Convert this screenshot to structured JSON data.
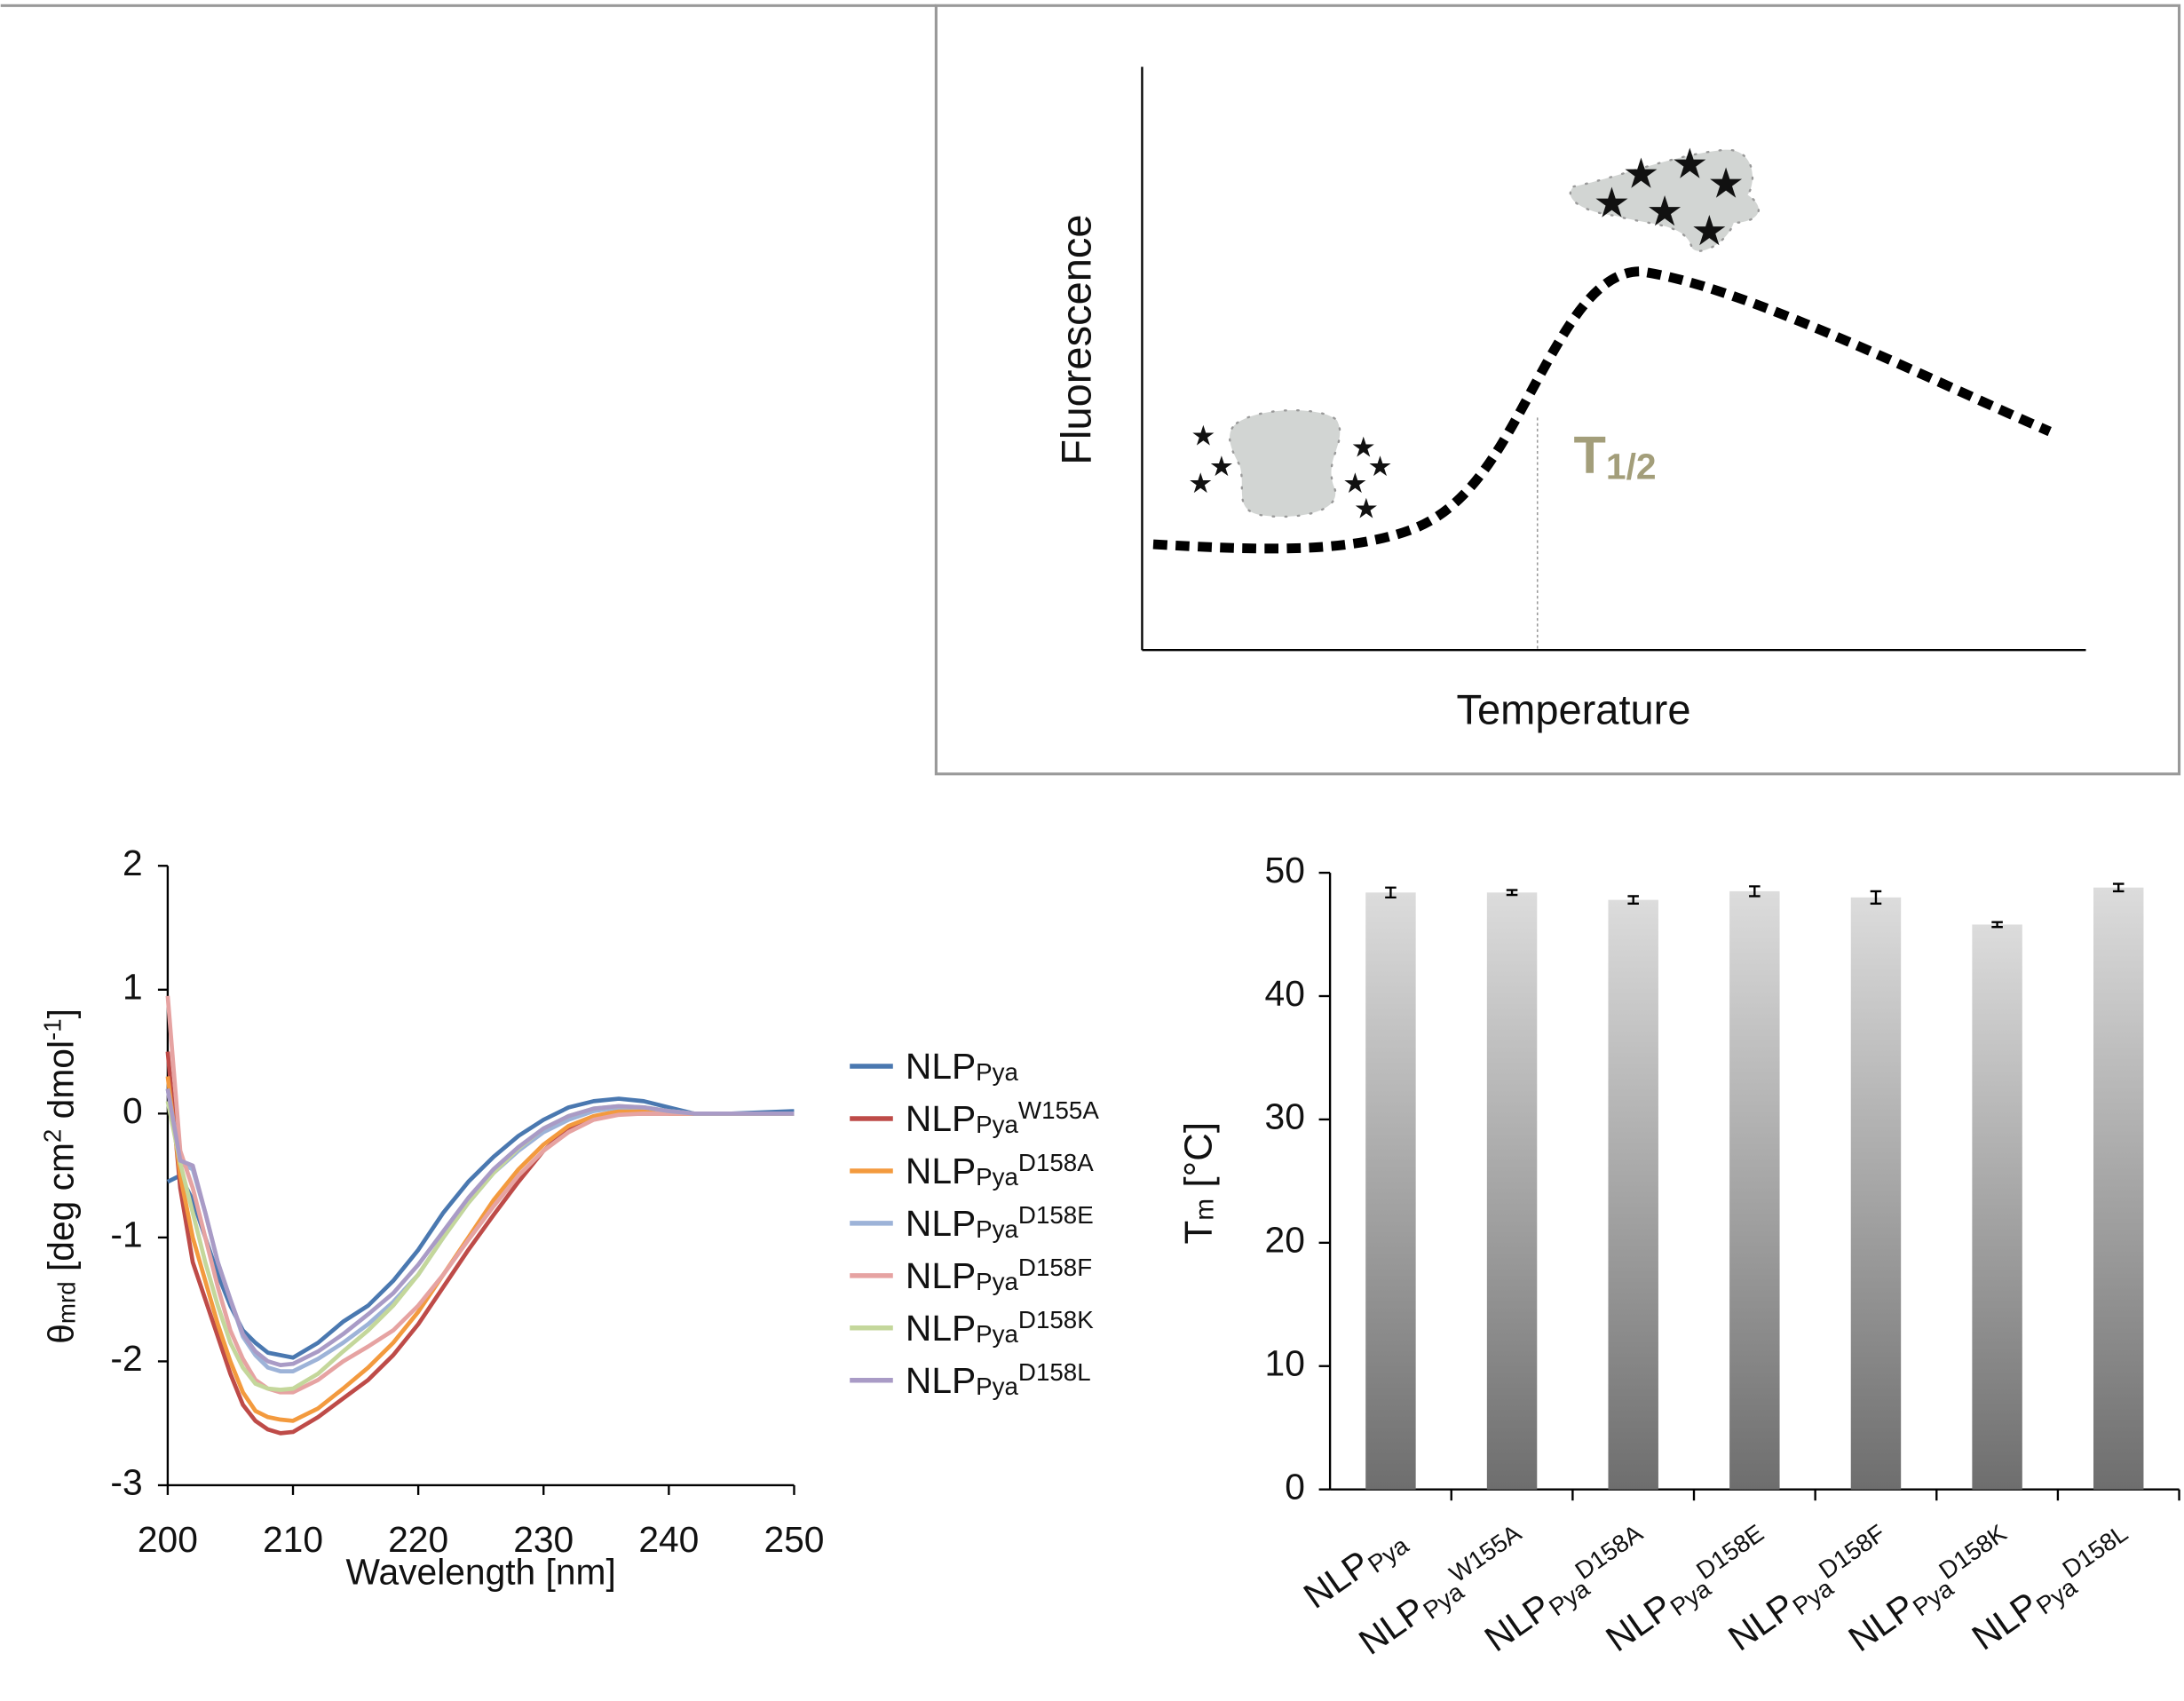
{
  "schematic": {
    "y_label": "Fluorescence",
    "x_label": "Temperature",
    "marker": {
      "main": "T",
      "subscript": "1/2"
    }
  },
  "chart_data": [
    {
      "type": "line",
      "x_label": "Wavelength [nm]",
      "y_label": [
        {
          "text": "θ"
        },
        {
          "text": "mrd",
          "script": "sub"
        },
        {
          "text": " [deg cm"
        },
        {
          "text": "2",
          "script": "super"
        },
        {
          "text": " dmol"
        },
        {
          "text": "-1",
          "script": "super"
        },
        {
          "text": "]"
        }
      ],
      "x": [
        200,
        201,
        202,
        203,
        204,
        205,
        206,
        207,
        208,
        209,
        210,
        212,
        214,
        216,
        218,
        220,
        222,
        224,
        226,
        228,
        230,
        232,
        234,
        236,
        238,
        240,
        242,
        245,
        250
      ],
      "xlim": [
        200,
        250
      ],
      "xticks": [
        200,
        210,
        220,
        230,
        240,
        250
      ],
      "ylim": [
        -3,
        2
      ],
      "yticks": [
        -3,
        -2,
        -1,
        0,
        1,
        2
      ],
      "series": [
        {
          "name": "NLP",
          "subscript": "Pya",
          "color": "#4a78b0",
          "values": [
            -0.55,
            -0.5,
            -0.7,
            -1.0,
            -1.3,
            -1.55,
            -1.75,
            -1.85,
            -1.93,
            -1.95,
            -1.97,
            -1.85,
            -1.68,
            -1.55,
            -1.35,
            -1.1,
            -0.8,
            -0.55,
            -0.35,
            -0.18,
            -0.05,
            0.05,
            0.1,
            0.12,
            0.1,
            0.05,
            0.0,
            0.0,
            0.02
          ]
        },
        {
          "name": "NLP",
          "subscript": "Pya",
          "superscript": "W155A",
          "color": "#be4b48",
          "values": [
            0.5,
            -0.6,
            -1.2,
            -1.5,
            -1.8,
            -2.1,
            -2.35,
            -2.48,
            -2.55,
            -2.58,
            -2.57,
            -2.45,
            -2.3,
            -2.15,
            -1.95,
            -1.7,
            -1.4,
            -1.1,
            -0.82,
            -0.55,
            -0.3,
            -0.12,
            -0.03,
            0.0,
            0.0,
            0.0,
            0.0,
            0.0,
            0.0
          ]
        },
        {
          "name": "NLP",
          "subscript": "Pya",
          "superscript": "D158A",
          "color": "#f39a3e",
          "values": [
            0.3,
            -0.5,
            -1.0,
            -1.35,
            -1.7,
            -2.0,
            -2.25,
            -2.4,
            -2.45,
            -2.47,
            -2.48,
            -2.38,
            -2.22,
            -2.05,
            -1.85,
            -1.6,
            -1.3,
            -1.0,
            -0.7,
            -0.45,
            -0.25,
            -0.1,
            -0.02,
            0.02,
            0.02,
            0.0,
            0.0,
            0.0,
            0.0
          ]
        },
        {
          "name": "NLP",
          "subscript": "Pya",
          "superscript": "D158E",
          "color": "#9db3d8",
          "values": [
            0.2,
            -0.4,
            -0.45,
            -0.8,
            -1.2,
            -1.5,
            -1.8,
            -1.95,
            -2.05,
            -2.08,
            -2.08,
            -1.98,
            -1.85,
            -1.7,
            -1.52,
            -1.3,
            -1.0,
            -0.72,
            -0.48,
            -0.3,
            -0.15,
            -0.05,
            0.02,
            0.05,
            0.05,
            0.02,
            0.0,
            0.0,
            0.0
          ]
        },
        {
          "name": "NLP",
          "subscript": "Pya",
          "superscript": "D158F",
          "color": "#e6a3a2",
          "values": [
            0.95,
            -0.3,
            -0.6,
            -1.0,
            -1.4,
            -1.75,
            -1.98,
            -2.15,
            -2.22,
            -2.25,
            -2.25,
            -2.15,
            -2.0,
            -1.88,
            -1.75,
            -1.55,
            -1.3,
            -1.02,
            -0.75,
            -0.5,
            -0.3,
            -0.15,
            -0.05,
            -0.01,
            0.0,
            0.0,
            0.0,
            0.0,
            0.0
          ]
        },
        {
          "name": "NLP",
          "subscript": "Pya",
          "superscript": "D158K",
          "color": "#c4d79b",
          "values": [
            0.1,
            -0.4,
            -0.8,
            -1.2,
            -1.55,
            -1.85,
            -2.05,
            -2.18,
            -2.22,
            -2.23,
            -2.22,
            -2.1,
            -1.92,
            -1.75,
            -1.55,
            -1.3,
            -1.0,
            -0.72,
            -0.48,
            -0.28,
            -0.12,
            -0.02,
            0.04,
            0.06,
            0.05,
            0.02,
            0.0,
            0.0,
            0.0
          ]
        },
        {
          "name": "NLP",
          "subscript": "Pya",
          "superscript": "D158L",
          "color": "#a99bc6",
          "values": [
            0.2,
            -0.38,
            -0.42,
            -0.8,
            -1.2,
            -1.5,
            -1.78,
            -1.92,
            -2.0,
            -2.03,
            -2.02,
            -1.92,
            -1.78,
            -1.62,
            -1.45,
            -1.22,
            -0.95,
            -0.68,
            -0.45,
            -0.27,
            -0.12,
            -0.02,
            0.04,
            0.06,
            0.05,
            0.02,
            0.0,
            0.0,
            0.0
          ]
        }
      ]
    },
    {
      "type": "bar",
      "y_label": [
        {
          "text": "T"
        },
        {
          "text": "m",
          "script": "sub"
        },
        {
          "text": " [°C]"
        }
      ],
      "categories": [
        {
          "main": "NLP",
          "subscript": "Pya"
        },
        {
          "main": "NLP",
          "subscript": "Pya",
          "superscript": "W155A"
        },
        {
          "main": "NLP",
          "subscript": "Pya",
          "superscript": "D158A"
        },
        {
          "main": "NLP",
          "subscript": "Pya",
          "superscript": "D158E"
        },
        {
          "main": "NLP",
          "subscript": "Pya",
          "superscript": "D158F"
        },
        {
          "main": "NLP",
          "subscript": "Pya",
          "superscript": "D158K"
        },
        {
          "main": "NLP",
          "subscript": "Pya",
          "superscript": "D158L"
        }
      ],
      "values": [
        48.4,
        48.4,
        47.8,
        48.5,
        48.0,
        45.8,
        48.8
      ],
      "errors": [
        0.4,
        0.2,
        0.3,
        0.4,
        0.5,
        0.2,
        0.3
      ],
      "colors": [
        "#dcdcdc",
        "#6e6e6e"
      ],
      "ylim": [
        0,
        50
      ],
      "yticks": [
        0,
        10,
        20,
        30,
        40,
        50
      ]
    }
  ]
}
